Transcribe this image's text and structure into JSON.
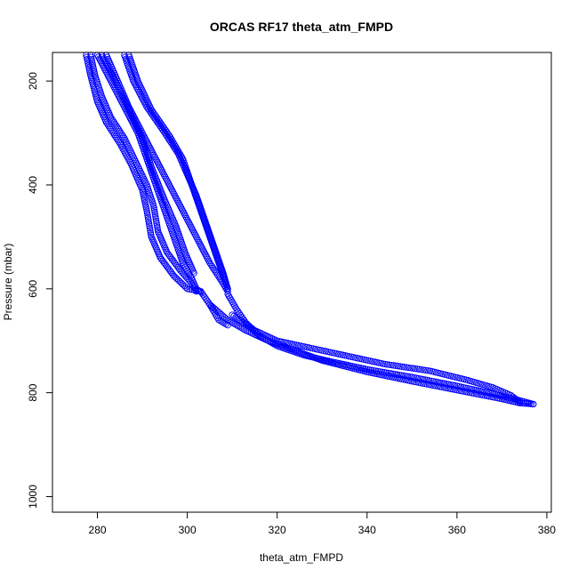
{
  "chart_data": {
    "type": "scatter",
    "title": "ORCAS RF17 theta_atm_FMPD",
    "xlabel": "theta_atm_FMPD",
    "ylabel": "Pressure (mbar)",
    "xlim": [
      270,
      381
    ],
    "ylim": [
      145,
      1030
    ],
    "y_reversed": true,
    "x_ticks": [
      "280",
      "300",
      "320",
      "340",
      "360",
      "380"
    ],
    "y_ticks": [
      "200",
      "400",
      "600",
      "800",
      "1000"
    ],
    "marker": "open-circle",
    "marker_color": "#0000ff",
    "grid": false,
    "legend": "none",
    "series": [
      {
        "segments": [
          [
            [
              277.5,
              150
            ],
            [
              278.5,
              190
            ],
            [
              280,
              240
            ],
            [
              282,
              280
            ],
            [
              285,
              320
            ],
            [
              287.5,
              360
            ],
            [
              290,
              410
            ],
            [
              291,
              450
            ],
            [
              292,
              500
            ],
            [
              294,
              540
            ],
            [
              297,
              575
            ],
            [
              300,
              600
            ],
            [
              303,
              605
            ]
          ],
          [
            [
              278.5,
              150
            ],
            [
              279.5,
              190
            ],
            [
              281,
              230
            ],
            [
              283,
              270
            ],
            [
              286,
              310
            ],
            [
              288.5,
              355
            ],
            [
              291,
              400
            ],
            [
              292.5,
              440
            ],
            [
              293.5,
              490
            ],
            [
              295.5,
              530
            ],
            [
              298.5,
              565
            ],
            [
              301,
              590
            ],
            [
              302,
              605
            ]
          ],
          [
            [
              280,
              150
            ],
            [
              283,
              200
            ],
            [
              286,
              250
            ],
            [
              289,
              300
            ],
            [
              291,
              350
            ],
            [
              293,
              400
            ],
            [
              295,
              450
            ],
            [
              297,
              500
            ],
            [
              299,
              550
            ],
            [
              301,
              580
            ],
            [
              302,
              600
            ],
            [
              303,
              606
            ]
          ],
          [
            [
              281,
              150
            ],
            [
              284,
              200
            ],
            [
              287,
              255
            ],
            [
              290,
              310
            ],
            [
              292,
              365
            ],
            [
              295,
              430
            ],
            [
              297.5,
              480
            ],
            [
              299.5,
              530
            ],
            [
              301.5,
              570
            ]
          ],
          [
            [
              282,
              150
            ],
            [
              284.5,
              200
            ],
            [
              287,
              250
            ],
            [
              290,
              300
            ],
            [
              293,
              350
            ],
            [
              296,
              400
            ],
            [
              299,
              450
            ],
            [
              302,
              500
            ],
            [
              305,
              550
            ],
            [
              308,
              590
            ],
            [
              309,
              605
            ]
          ],
          [
            [
              286,
              150
            ],
            [
              288,
              200
            ],
            [
              291,
              250
            ],
            [
              295,
              300
            ],
            [
              298,
              340
            ],
            [
              300,
              380
            ],
            [
              302,
              420
            ],
            [
              304,
              470
            ],
            [
              306,
              520
            ],
            [
              308,
              570
            ],
            [
              309,
              600
            ]
          ],
          [
            [
              287,
              150
            ],
            [
              289,
              200
            ],
            [
              292,
              255
            ],
            [
              296,
              305
            ],
            [
              299,
              350
            ],
            [
              301,
              400
            ],
            [
              303,
              450
            ],
            [
              305,
              500
            ],
            [
              307,
              550
            ],
            [
              309,
              600
            ]
          ],
          [
            [
              303,
              605
            ],
            [
              305,
              630
            ],
            [
              307,
              660
            ],
            [
              309,
              670
            ]
          ],
          [
            [
              309,
              610
            ],
            [
              311,
              640
            ],
            [
              313,
              665
            ],
            [
              316,
              690
            ],
            [
              320,
              710
            ],
            [
              326,
              728
            ],
            [
              332,
              740
            ],
            [
              340,
              755
            ],
            [
              350,
              770
            ],
            [
              360,
              787
            ],
            [
              368,
              802
            ],
            [
              374,
              815
            ],
            [
              377,
              822
            ]
          ],
          [
            [
              305,
              630
            ],
            [
              309,
              660
            ],
            [
              313,
              680
            ],
            [
              318,
              700
            ],
            [
              325,
              722
            ],
            [
              330,
              738
            ],
            [
              340,
              760
            ],
            [
              350,
              778
            ],
            [
              360,
              795
            ],
            [
              370,
              812
            ],
            [
              374,
              820
            ],
            [
              377,
              822
            ]
          ],
          [
            [
              310,
              650
            ],
            [
              315,
              680
            ],
            [
              320,
              700
            ],
            [
              328,
              715
            ],
            [
              336,
              730
            ],
            [
              344,
              745
            ],
            [
              354,
              758
            ],
            [
              362,
              775
            ],
            [
              368,
              790
            ],
            [
              372,
              805
            ],
            [
              374,
              818
            ]
          ]
        ]
      }
    ]
  }
}
